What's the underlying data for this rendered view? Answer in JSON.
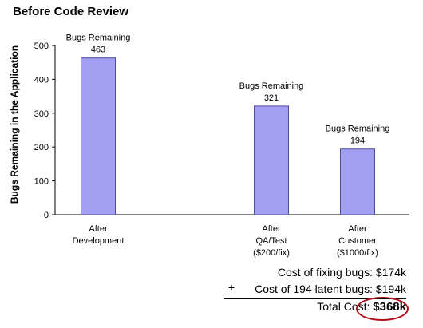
{
  "chart_data": {
    "type": "bar",
    "title": "Before Code Review",
    "ylabel": "Bugs Remaining in the Application",
    "ylim": [
      0,
      500
    ],
    "yticks": [
      0,
      100,
      200,
      300,
      400,
      500
    ],
    "bar_color": "#a39ff2",
    "bar_edge_color": "#4b4b9a",
    "categories": [
      {
        "label_lines": [
          "After",
          "Development"
        ]
      },
      {
        "label_lines": [
          "After",
          "QA/Test",
          "($200/fix)"
        ]
      },
      {
        "label_lines": [
          "After",
          "Customer",
          "($1000/fix)"
        ]
      }
    ],
    "values": [
      463,
      321,
      194
    ],
    "data_labels": [
      {
        "caption": "Bugs Remaining",
        "value": "463"
      },
      {
        "caption": "Bugs Remaining",
        "value": "321"
      },
      {
        "caption": "Bugs Remaining",
        "value": "194"
      }
    ]
  },
  "costs": {
    "fixing": "Cost of fixing bugs: $174k",
    "plus": "+",
    "latent": "Cost of 194 latent bugs: $194k",
    "total_label": "Total Cost: ",
    "total_value": "$368k",
    "highlight_color": "#b0101a"
  }
}
